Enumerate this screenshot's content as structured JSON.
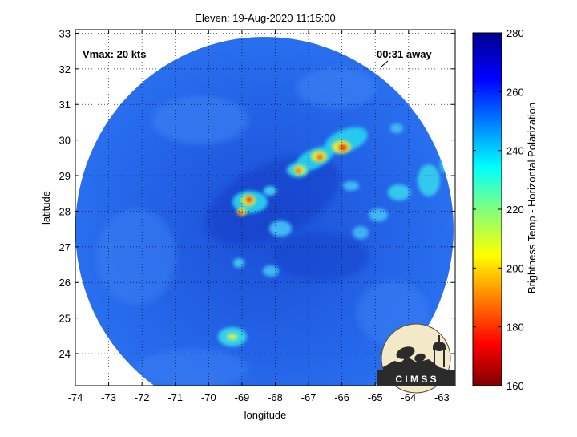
{
  "figure": {
    "title": "Eleven: 19-Aug-2020 11:15:00",
    "vmax_label": "Vmax: 20 kts",
    "time_label": "00:31 away",
    "xlabel": "longitude",
    "ylabel": "latitude",
    "colorbar_label": "Brightness Temp - Horizontal Polarization",
    "logo_text": "C I M S S"
  },
  "axes": {
    "xticks": [
      "-74",
      "-73",
      "-72",
      "-71",
      "-70",
      "-69",
      "-68",
      "-67",
      "-66",
      "-65",
      "-64",
      "-63"
    ],
    "yticks": [
      "33",
      "32",
      "31",
      "30",
      "29",
      "28",
      "27",
      "26",
      "25",
      "24"
    ],
    "xlim": [
      -74,
      -62.6
    ],
    "ylim": [
      23.1,
      33.1
    ],
    "grid": "dotted"
  },
  "colorbar": {
    "ticks": [
      "280",
      "260",
      "240",
      "220",
      "200",
      "180",
      "160"
    ],
    "range": [
      160,
      280
    ],
    "colormap": "jet",
    "direction": "160 at bottom (dark red), 280 at top (dark blue)"
  },
  "colors": {
    "background_disc": "#1f5fe0",
    "ring": "#2a6cf0",
    "hotspot": "#e23a18"
  },
  "storm_features": [
    {
      "name": "convective band north",
      "lon": -66.0,
      "lat": 29.8,
      "min_tb": 185
    },
    {
      "name": "convective band center",
      "lon": -67.3,
      "lat": 29.2,
      "min_tb": 195
    },
    {
      "name": "core near center",
      "lon": -69.0,
      "lat": 28.2,
      "min_tb": 190
    },
    {
      "name": "southern cluster",
      "lon": -69.6,
      "lat": 24.5,
      "min_tb": 240
    },
    {
      "name": "eastern cells",
      "lon": -63.6,
      "lat": 28.6,
      "min_tb": 235
    }
  ]
}
